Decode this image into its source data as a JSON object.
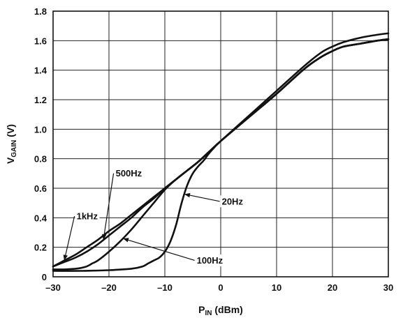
{
  "chart_data": {
    "type": "line",
    "title": "",
    "xlabel": {
      "main": "P",
      "sub": "IN",
      "rest": " (dBm)"
    },
    "ylabel": {
      "main": "V",
      "sub": "GAIN",
      "rest": " (V)"
    },
    "xlim": [
      -30,
      30
    ],
    "ylim": [
      0,
      1.8
    ],
    "xticks": [
      -30,
      -20,
      -10,
      0,
      10,
      20,
      30
    ],
    "xtick_labels": [
      "–30",
      "–20",
      "–10",
      "0",
      "10",
      "20",
      "30"
    ],
    "yticks": [
      0,
      0.2,
      0.4,
      0.6,
      0.8,
      1.0,
      1.2,
      1.4,
      1.6,
      1.8
    ],
    "ytick_labels": [
      "0",
      "0.2",
      "0.4",
      "0.6",
      "0.8",
      "1.0",
      "1.2",
      "1.4",
      "1.6",
      "1.8"
    ],
    "grid": true,
    "series": [
      {
        "name": "1kHz",
        "x": [
          -30,
          -28,
          -26,
          -24,
          -22,
          -20,
          -18,
          -16,
          -14,
          -12,
          -10,
          -8,
          -6,
          -4,
          -2,
          0,
          5,
          10,
          15,
          18,
          20,
          22,
          25,
          28,
          30
        ],
        "y": [
          0.07,
          0.11,
          0.15,
          0.2,
          0.25,
          0.31,
          0.36,
          0.42,
          0.48,
          0.54,
          0.6,
          0.66,
          0.72,
          0.78,
          0.85,
          0.92,
          1.09,
          1.26,
          1.43,
          1.52,
          1.56,
          1.59,
          1.62,
          1.64,
          1.65
        ]
      },
      {
        "name": "500Hz",
        "x": [
          -30,
          -28,
          -26,
          -24,
          -22,
          -20,
          -18,
          -16,
          -14,
          -12,
          -10,
          -8,
          -6,
          -4,
          -2,
          0,
          5,
          10,
          15,
          18,
          20,
          22,
          25,
          28,
          30
        ],
        "y": [
          0.07,
          0.1,
          0.13,
          0.17,
          0.22,
          0.28,
          0.34,
          0.4,
          0.47,
          0.53,
          0.6,
          0.66,
          0.72,
          0.78,
          0.85,
          0.92,
          1.08,
          1.24,
          1.41,
          1.49,
          1.53,
          1.56,
          1.58,
          1.6,
          1.61
        ]
      },
      {
        "name": "100Hz",
        "x": [
          -30,
          -28,
          -26,
          -25,
          -24,
          -23,
          -22,
          -20,
          -18,
          -16,
          -14,
          -12,
          -10,
          -8,
          -6,
          -4,
          -2,
          0,
          5,
          10,
          15,
          18,
          20,
          22,
          25,
          28,
          30
        ],
        "y": [
          0.05,
          0.05,
          0.055,
          0.06,
          0.07,
          0.09,
          0.11,
          0.17,
          0.24,
          0.32,
          0.41,
          0.5,
          0.59,
          0.66,
          0.72,
          0.78,
          0.85,
          0.92,
          1.08,
          1.24,
          1.41,
          1.49,
          1.53,
          1.56,
          1.58,
          1.6,
          1.61
        ]
      },
      {
        "name": "20Hz",
        "x": [
          -30,
          -25,
          -20,
          -16,
          -14,
          -13,
          -12,
          -11,
          -10,
          -9,
          -8,
          -7,
          -6,
          -5,
          -4,
          -3,
          -2,
          0,
          5,
          10,
          15,
          18,
          20,
          22,
          25,
          28,
          30
        ],
        "y": [
          0.04,
          0.04,
          0.045,
          0.055,
          0.07,
          0.09,
          0.11,
          0.13,
          0.17,
          0.24,
          0.35,
          0.5,
          0.62,
          0.7,
          0.75,
          0.79,
          0.84,
          0.92,
          1.08,
          1.24,
          1.41,
          1.49,
          1.53,
          1.56,
          1.58,
          1.6,
          1.61
        ]
      }
    ],
    "annotations": [
      {
        "text": "500Hz",
        "target_series": "500Hz",
        "at_x": -21,
        "label_x": -18.8,
        "label_y": 0.68
      },
      {
        "text": "1kHz",
        "target_series": "1kHz",
        "at_x": -28,
        "label_x": -25.8,
        "label_y": 0.39
      },
      {
        "text": "20Hz",
        "target_series": "20Hz",
        "at_x": -6.5,
        "label_x": 0.2,
        "label_y": 0.49
      },
      {
        "text": "100Hz",
        "target_series": "100Hz",
        "at_x": -17.5,
        "label_x": -4.3,
        "label_y": 0.09
      }
    ]
  }
}
